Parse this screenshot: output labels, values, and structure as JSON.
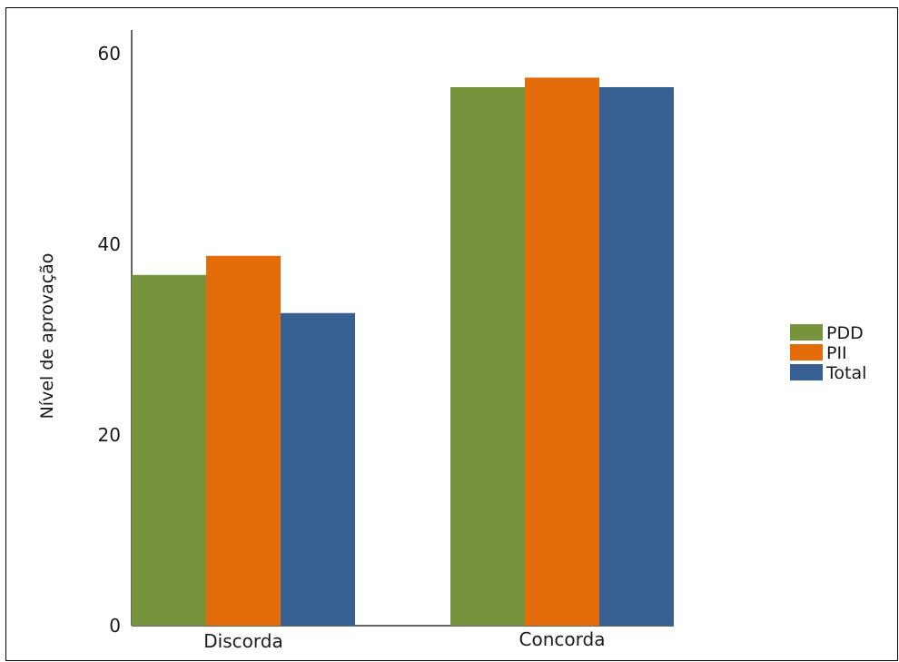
{
  "chart_data": {
    "type": "bar",
    "title": "",
    "xlabel": "",
    "ylabel": "Nível de aprovação",
    "categories": [
      "Discorda",
      "Concorda"
    ],
    "series": [
      {
        "name": "PDD",
        "color": "#77933c",
        "values": [
          36.8,
          56.5
        ]
      },
      {
        "name": "PII",
        "color": "#e46c0a",
        "values": [
          38.8,
          57.5
        ]
      },
      {
        "name": "Total",
        "color": "#376092",
        "values": [
          32.8,
          56.5
        ]
      }
    ],
    "yticks": [
      0,
      20,
      40,
      60
    ],
    "ylim": [
      0,
      62.5
    ],
    "grid": false,
    "legend_position": "right"
  }
}
